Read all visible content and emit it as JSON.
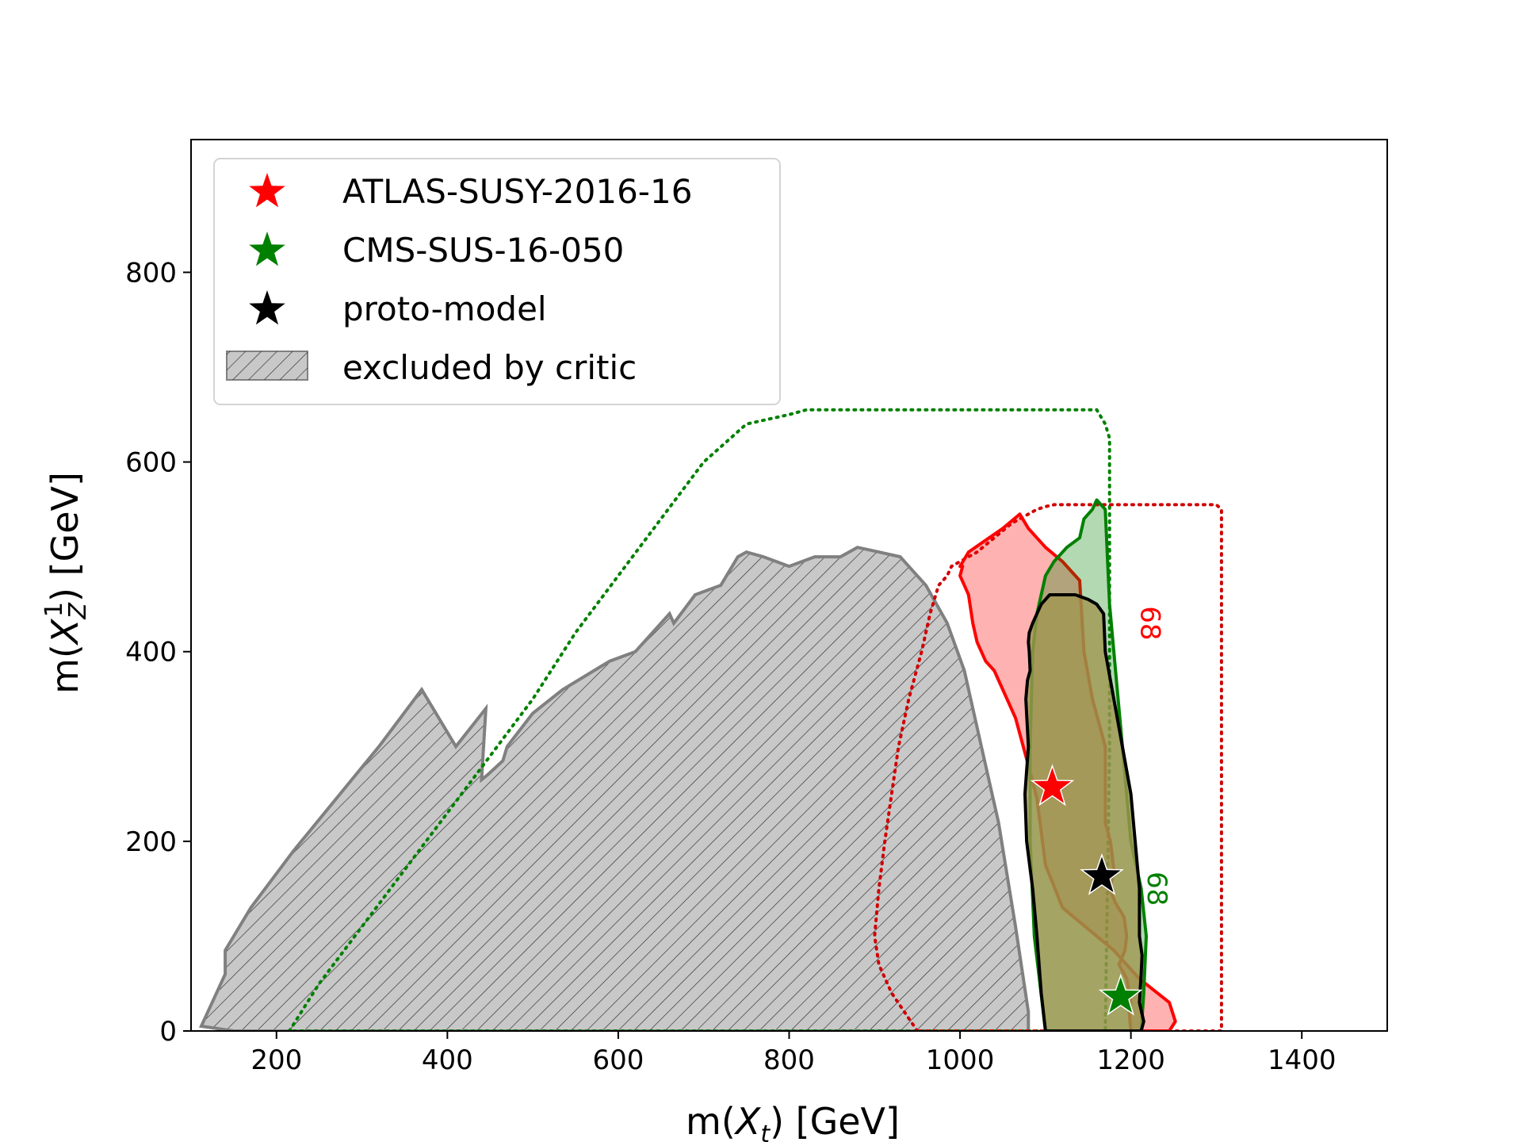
{
  "chart_data": {
    "type": "scatter",
    "xlabel": "m(X_t) [GeV]",
    "ylabel": "m(X_Z^1) [GeV]",
    "xlim": [
      100,
      1500
    ],
    "ylim": [
      0,
      940
    ],
    "x_ticks": [
      "200",
      "400",
      "600",
      "800",
      "1000",
      "1200",
      "1400"
    ],
    "x_tick_values": [
      200,
      400,
      600,
      800,
      1000,
      1200,
      1400
    ],
    "y_ticks": [
      "0",
      "200",
      "400",
      "600",
      "800"
    ],
    "y_tick_values": [
      0,
      200,
      400,
      600,
      800
    ],
    "grid": false,
    "legend_position": "top-left",
    "legend": [
      {
        "label": "ATLAS-SUSY-2016-16",
        "marker": "star",
        "color": "#ff0000"
      },
      {
        "label": "CMS-SUS-16-050",
        "marker": "star",
        "color": "#008000"
      },
      {
        "label": "proto-model",
        "marker": "star",
        "color": "#000000"
      },
      {
        "label": "excluded by critic",
        "marker": "hatched-patch",
        "color": "#c8c8c8"
      }
    ],
    "contour_labels": [
      {
        "text": "68",
        "color": "#ff0000",
        "x": 1212,
        "y": 430
      },
      {
        "text": "68",
        "color": "#008000",
        "x": 1220,
        "y": 150
      }
    ],
    "series": [
      {
        "name": "ATLAS-SUSY-2016-16",
        "type": "star",
        "color": "#ff0000",
        "x": [
          1108
        ],
        "y": [
          257
        ]
      },
      {
        "name": "CMS-SUS-16-050",
        "type": "star",
        "color": "#008000",
        "x": [
          1188
        ],
        "y": [
          36
        ]
      },
      {
        "name": "proto-model",
        "type": "star",
        "color": "#000000",
        "x": [
          1166
        ],
        "y": [
          163
        ]
      }
    ],
    "regions": {
      "excluded_by_critic": {
        "fill": "#c8c8c8",
        "edge": "#808080",
        "hatch": true,
        "x": [
          112,
          140,
          140,
          170,
          220,
          270,
          320,
          370,
          410,
          445,
          440,
          447,
          465,
          470,
          500,
          535,
          590,
          620,
          640,
          660,
          665,
          690,
          720,
          740,
          750,
          770,
          800,
          830,
          860,
          880,
          905,
          930,
          960,
          985,
          1005,
          1025,
          1045,
          1065,
          1080,
          1080,
          1045,
          1000,
          900,
          800,
          700,
          600,
          500,
          400,
          300,
          200,
          150,
          112
        ],
        "y": [
          5,
          60,
          85,
          130,
          190,
          245,
          300,
          360,
          300,
          340,
          265,
          270,
          285,
          300,
          335,
          360,
          390,
          400,
          420,
          440,
          430,
          460,
          470,
          500,
          505,
          500,
          490,
          500,
          500,
          510,
          505,
          500,
          470,
          430,
          380,
          300,
          220,
          110,
          20,
          0,
          0,
          0,
          0,
          0,
          0,
          0,
          0,
          0,
          0,
          0,
          0,
          5
        ]
      },
      "atlas_68": {
        "fill": "#ff0000",
        "opacity": 0.3,
        "edge": "#ff0000",
        "x": [
          1000,
          1010,
          1050,
          1070,
          1080,
          1100,
          1120,
          1140,
          1145,
          1155,
          1170,
          1170,
          1176,
          1180,
          1178,
          1175,
          1182,
          1192,
          1195,
          1193,
          1186,
          1195,
          1200,
          1198,
          1200,
          1210,
          1230,
          1245,
          1252,
          1245,
          1210,
          1180,
          1120,
          1100,
          1095,
          1090,
          1080,
          1065,
          1050,
          1040,
          1030,
          1020,
          1015,
          1010,
          1005,
          1000,
          1003
        ],
        "y": [
          490,
          505,
          530,
          545,
          530,
          510,
          495,
          475,
          400,
          350,
          300,
          220,
          200,
          170,
          160,
          150,
          135,
          120,
          100,
          85,
          70,
          55,
          30,
          20,
          0,
          0,
          0,
          0,
          10,
          30,
          55,
          85,
          130,
          175,
          210,
          245,
          280,
          330,
          360,
          380,
          390,
          410,
          430,
          460,
          470,
          480,
          490
        ]
      },
      "cms_68": {
        "fill": "#008000",
        "opacity": 0.3,
        "edge": "#008000",
        "x": [
          1100,
          1110,
          1125,
          1140,
          1145,
          1155,
          1160,
          1170,
          1175,
          1180,
          1190,
          1200,
          1212,
          1218,
          1215,
          1212,
          1180,
          1130,
          1100,
          1087,
          1082,
          1082,
          1085,
          1090,
          1095,
          1100
        ],
        "y": [
          480,
          495,
          510,
          520,
          540,
          550,
          560,
          550,
          450,
          400,
          300,
          200,
          150,
          100,
          40,
          0,
          0,
          0,
          0,
          100,
          200,
          300,
          400,
          440,
          460,
          480
        ]
      },
      "proto_model_68": {
        "fill": "#a09650",
        "opacity": 0.8,
        "edge": "#000000",
        "x": [
          1085,
          1095,
          1105,
          1120,
          1135,
          1150,
          1160,
          1168,
          1170,
          1180,
          1190,
          1200,
          1205,
          1210,
          1210,
          1213,
          1212,
          1210,
          1215,
          1212,
          1180,
          1140,
          1100,
          1095,
          1090,
          1085,
          1078,
          1076,
          1080,
          1077,
          1079,
          1082,
          1081,
          1080,
          1081,
          1085
        ],
        "y": [
          430,
          450,
          460,
          460,
          460,
          455,
          450,
          440,
          400,
          350,
          300,
          250,
          200,
          150,
          100,
          80,
          60,
          30,
          10,
          0,
          0,
          0,
          0,
          40,
          100,
          150,
          200,
          250,
          300,
          350,
          370,
          380,
          400,
          410,
          420,
          430
        ]
      },
      "atlas_expected": {
        "color": "#d00000",
        "linestyle": "dotted",
        "x": [
          950,
          935,
          920,
          905,
          900,
          905,
          912,
          920,
          928,
          940,
          955,
          965,
          975,
          985,
          990,
          1000,
          1010,
          1020,
          1040,
          1060,
          1070,
          1080,
          1090,
          1100,
          1110,
          1120,
          1280,
          1300,
          1306,
          1306,
          1300,
          1280,
          1240,
          1000,
          950
        ],
        "y": [
          0,
          20,
          40,
          70,
          100,
          150,
          200,
          250,
          300,
          350,
          400,
          440,
          470,
          480,
          490,
          495,
          500,
          505,
          520,
          535,
          540,
          545,
          550,
          553,
          555,
          555,
          555,
          555,
          550,
          0,
          0,
          0,
          0,
          0,
          0
        ]
      },
      "cms_expected": {
        "color": "#008000",
        "linestyle": "dotted",
        "x": [
          215,
          250,
          300,
          350,
          400,
          450,
          500,
          550,
          600,
          650,
          700,
          750,
          800,
          820,
          1160,
          1170,
          1175,
          1175,
          1170,
          1120,
          1000,
          800,
          600,
          400,
          220,
          215
        ],
        "y": [
          0,
          50,
          110,
          170,
          230,
          290,
          350,
          420,
          480,
          540,
          600,
          640,
          650,
          655,
          655,
          640,
          625,
          300,
          0,
          0,
          0,
          0,
          0,
          0,
          0,
          0
        ]
      }
    }
  }
}
